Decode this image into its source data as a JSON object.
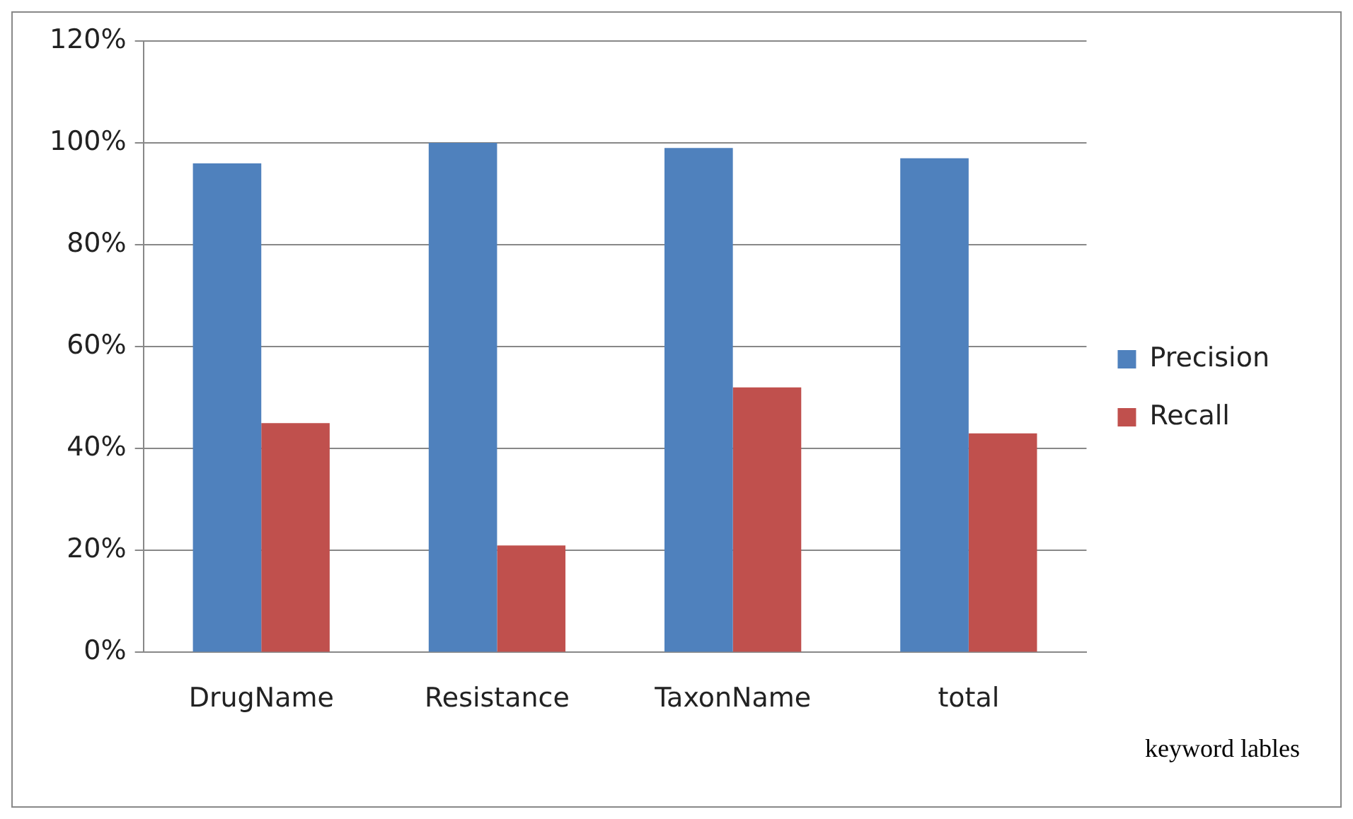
{
  "chart_data": {
    "type": "bar",
    "xlabel": "keyword lables",
    "categories": [
      "DrugName",
      "Resistance",
      "TaxonName",
      "total"
    ],
    "series": [
      {
        "name": "Precision",
        "color": "#4f81bd",
        "values": [
          96,
          100,
          99,
          97
        ]
      },
      {
        "name": "Recall",
        "color": "#c0504d",
        "values": [
          45,
          21,
          52,
          43
        ]
      }
    ],
    "ylim": [
      0,
      120
    ],
    "yticks": [
      {
        "value": 0,
        "label": "0%"
      },
      {
        "value": 20,
        "label": "20%"
      },
      {
        "value": 40,
        "label": "40%"
      },
      {
        "value": 60,
        "label": "60%"
      },
      {
        "value": 80,
        "label": "80%"
      },
      {
        "value": 100,
        "label": "100%"
      },
      {
        "value": 120,
        "label": "120%"
      }
    ],
    "grid": "y",
    "legend": "right"
  }
}
